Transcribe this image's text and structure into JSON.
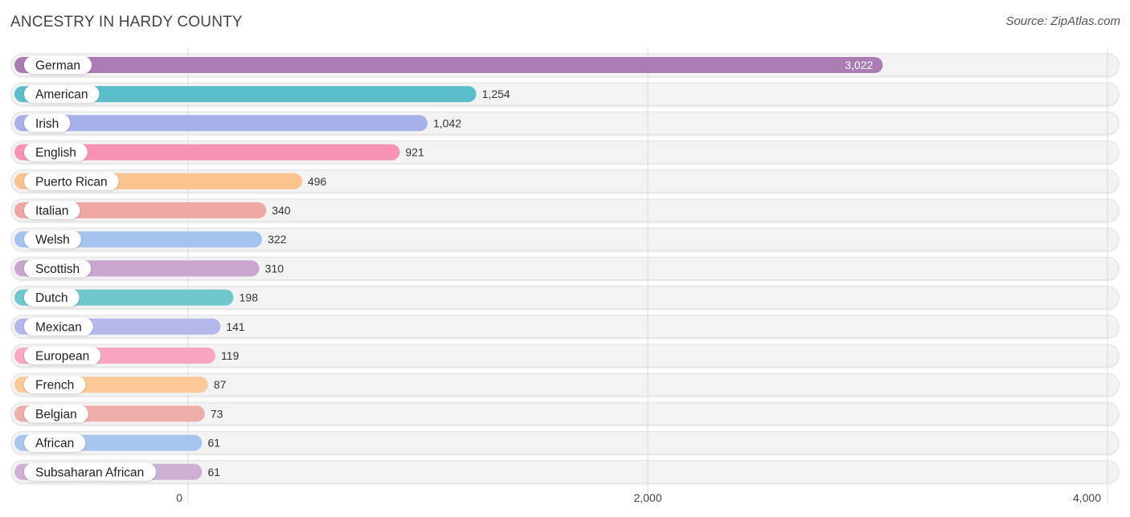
{
  "header": {
    "title": "ANCESTRY IN HARDY COUNTY",
    "source": "Source: ZipAtlas.com"
  },
  "chart_data": {
    "type": "bar",
    "orientation": "horizontal",
    "title": "ANCESTRY IN HARDY COUNTY",
    "xlabel": "",
    "ylabel": "",
    "xlim": [
      0,
      4000
    ],
    "ticks": [
      {
        "value": 0,
        "label": "0"
      },
      {
        "value": 2000,
        "label": "2,000"
      },
      {
        "value": 4000,
        "label": "4,000"
      }
    ],
    "grid": true,
    "categories": [
      "German",
      "American",
      "Irish",
      "English",
      "Puerto Rican",
      "Italian",
      "Welsh",
      "Scottish",
      "Dutch",
      "Mexican",
      "European",
      "French",
      "Belgian",
      "African",
      "Subsaharan African"
    ],
    "values": [
      3022,
      1254,
      1042,
      921,
      496,
      340,
      322,
      310,
      198,
      141,
      119,
      87,
      73,
      61,
      61
    ],
    "value_labels": [
      "3,022",
      "1,254",
      "1,042",
      "921",
      "496",
      "340",
      "322",
      "310",
      "198",
      "141",
      "119",
      "87",
      "73",
      "61",
      "61"
    ],
    "colors": [
      "#ab7bb3",
      "#5bbfcb",
      "#a7b0e8",
      "#f792b3",
      "#fbc38e",
      "#efa7a3",
      "#a4c3ee",
      "#c8a6cd",
      "#6fc8cc",
      "#b3b7ea",
      "#f8a6c3",
      "#fcc898",
      "#efaeaa",
      "#a8c5ef",
      "#cdb0d4"
    ]
  }
}
